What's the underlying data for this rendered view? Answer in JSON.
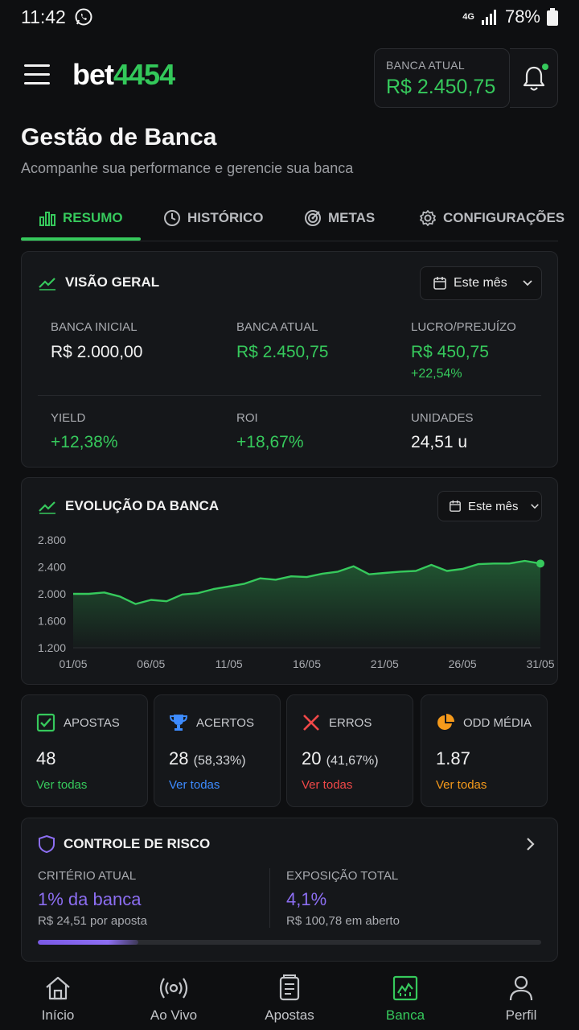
{
  "status_bar": {
    "time": "11:42",
    "network": "4G",
    "battery": "78%"
  },
  "header": {
    "logo_part1": "bet",
    "logo_part2": "4454",
    "balance_label": "BANCA ATUAL",
    "balance_value": "R$ 2.450,75"
  },
  "page": {
    "title": "Gestão de Banca",
    "subtitle": "Acompanhe sua performance e gerencie sua banca"
  },
  "tabs": [
    {
      "label": "RESUMO",
      "icon": "bar-chart-icon",
      "active": true
    },
    {
      "label": "HISTÓRICO",
      "icon": "clock-icon",
      "active": false
    },
    {
      "label": "METAS",
      "icon": "target-icon",
      "active": false
    },
    {
      "label": "CONFIGURAÇÕES",
      "icon": "gear-icon",
      "active": false
    }
  ],
  "overview": {
    "title": "VISÃO GERAL",
    "period": "Este mês",
    "stats": [
      {
        "label": "BANCA INICIAL",
        "value": "R$ 2.000,00"
      },
      {
        "label": "BANCA ATUAL",
        "value": "R$ 2.450,75"
      },
      {
        "label": "LUCRO/PREJUÍZO",
        "value": "R$ 450,75",
        "sub": "+22,54%"
      },
      {
        "label": "YIELD",
        "value": "+12,38%"
      },
      {
        "label": "ROI",
        "value": "+18,67%"
      },
      {
        "label": "UNIDADES",
        "value": "24,51 u"
      }
    ]
  },
  "evolution": {
    "title": "EVOLUÇÃO DA BANCA",
    "period": "Este mês"
  },
  "chart_data": {
    "type": "area",
    "title": "EVOLUÇÃO DA BANCA",
    "y_ticks": [
      "2.800",
      "2.400",
      "2.000",
      "1.600",
      "1.200"
    ],
    "ylim": [
      1200,
      2800
    ],
    "x_ticks": [
      "01/05",
      "06/05",
      "11/05",
      "16/05",
      "21/05",
      "26/05",
      "31/05"
    ],
    "xlim": [
      1,
      31
    ],
    "grid": false,
    "color": "#36c95c",
    "series": [
      {
        "x": [
          1,
          2,
          3,
          4,
          5,
          6,
          7,
          8,
          9,
          10,
          11,
          12,
          13,
          14,
          15,
          16,
          17,
          18,
          19,
          20,
          21,
          22,
          23,
          24,
          25,
          26,
          27,
          28,
          29,
          30,
          31
        ],
        "y": [
          2000,
          2000,
          2020,
          1960,
          1850,
          1910,
          1890,
          1990,
          2010,
          2070,
          2110,
          2150,
          2230,
          2210,
          2260,
          2250,
          2300,
          2330,
          2410,
          2290,
          2310,
          2330,
          2340,
          2430,
          2340,
          2370,
          2440,
          2450,
          2450,
          2490,
          2450
        ]
      }
    ]
  },
  "metric_cards": [
    {
      "title": "APOSTAS",
      "icon": "checkbox-icon",
      "value": "48",
      "detail": "",
      "link": "Ver todas",
      "color": "#36c95c"
    },
    {
      "title": "ACERTOS",
      "icon": "trophy-icon",
      "value": "28",
      "detail": "(58,33%)",
      "link": "Ver todas",
      "color": "#3d8bff"
    },
    {
      "title": "ERROS",
      "icon": "x-icon",
      "value": "20",
      "detail": "(41,67%)",
      "link": "Ver todas",
      "color": "#f04848"
    },
    {
      "title": "ODD MÉDIA",
      "icon": "pie-chart-icon",
      "value": "1.87",
      "detail": "",
      "link": "Ver todas",
      "color": "#f59a1b"
    }
  ],
  "risk": {
    "title": "CONTROLE DE RISCO",
    "criterion_label": "CRITÉRIO ATUAL",
    "criterion_value": "1% da banca",
    "criterion_sub": "R$ 24,51 por aposta",
    "exposure_label": "EXPOSIÇÃO TOTAL",
    "exposure_value": "4,1%",
    "exposure_sub": "R$ 100,78 em aberto",
    "progress_fraction": 0.2
  },
  "bottom_nav": [
    {
      "label": "Início",
      "icon": "home-icon",
      "active": false
    },
    {
      "label": "Ao Vivo",
      "icon": "live-icon",
      "active": false
    },
    {
      "label": "Apostas",
      "icon": "ticket-icon",
      "active": false
    },
    {
      "label": "Banca",
      "icon": "chart-icon",
      "active": true
    },
    {
      "label": "Perfil",
      "icon": "user-icon",
      "active": false
    }
  ]
}
